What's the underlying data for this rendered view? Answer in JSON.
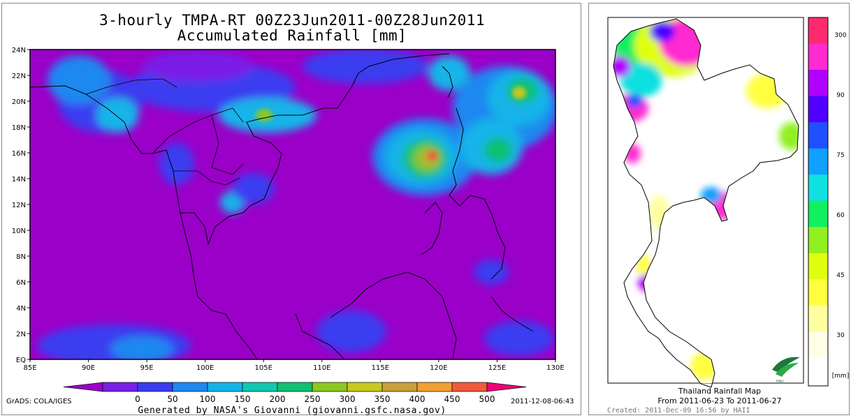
{
  "left_map": {
    "title_line1": "3-hourly TMPA-RT 00Z23Jun2011-00Z28Jun2011",
    "title_line2": "Accumulated Rainfall [mm]",
    "lat_ticks": [
      "24N",
      "22N",
      "20N",
      "18N",
      "16N",
      "14N",
      "12N",
      "10N",
      "8N",
      "6N",
      "4N",
      "2N",
      "EQ"
    ],
    "lon_ticks": [
      "85E",
      "90E",
      "95E",
      "100E",
      "105E",
      "110E",
      "115E",
      "120E",
      "125E",
      "130E"
    ],
    "colorbar_labels": [
      "0",
      "50",
      "100",
      "150",
      "200",
      "250",
      "300",
      "350",
      "400",
      "450",
      "500"
    ],
    "colorbar_colors": [
      "#9a00c8",
      "#7a1fe6",
      "#3a3cf0",
      "#1e88f0",
      "#12b4e8",
      "#10c8b0",
      "#10c070",
      "#8cc820",
      "#c8c81e",
      "#c8a03c",
      "#f0a032",
      "#f05a3c",
      "#f00078"
    ],
    "grads_label": "GrADS: COLA/IGES",
    "timestamp": "2011-12-08-06:43",
    "credit": "Generated by NASA's Giovanni (giovanni.gsfc.nasa.gov)"
  },
  "right_map": {
    "legend_labels": [
      "300",
      "90",
      "75",
      "60",
      "45",
      "30"
    ],
    "legend_unit": "[mm]",
    "legend_colors": [
      "#ff2a6e",
      "#ff2ad0",
      "#b000ff",
      "#5000ff",
      "#2050ff",
      "#10a0ff",
      "#10e0e0",
      "#10f060",
      "#90f020",
      "#e0ff10",
      "#ffff40",
      "#ffffa0",
      "#ffffe8"
    ],
    "caption_title": "Thailand Rainfall Map",
    "caption_range": "From 2011-06-23  To 2011-06-27",
    "created": "Created: 2011-Dec-09 16:56 by HAII",
    "logo": "haii-leaf-logo"
  }
}
